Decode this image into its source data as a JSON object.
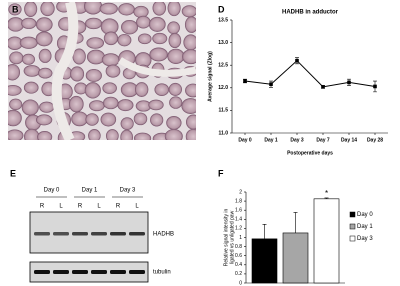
{
  "panel_labels": [
    "B",
    "D",
    "E",
    "F"
  ],
  "chart_data": [
    {
      "type": "line",
      "title": "HADHB in adductor",
      "y_label": "Average signal (Zlog)",
      "x_label": "Postoperative days",
      "categories": [
        "Day 0",
        "Day 1",
        "Day 3",
        "Day 7",
        "Day 14",
        "Day 28"
      ],
      "values": [
        12.15,
        12.08,
        12.6,
        12.02,
        12.12,
        12.03
      ],
      "errors": [
        0.04,
        0.07,
        0.07,
        0.03,
        0.07,
        0.12
      ],
      "color": "#000000",
      "ylim": [
        11.0,
        13.5
      ],
      "yticks": [
        {
          "value": 11,
          "label": "11.0"
        },
        {
          "value": 11.5,
          "label": "11.5"
        },
        {
          "value": 12,
          "label": "12.0"
        },
        {
          "value": 12.5,
          "label": "12.5"
        },
        {
          "value": 13,
          "label": "13.0"
        },
        {
          "value": 13.5,
          "label": "13.5"
        }
      ]
    },
    {
      "type": "bar",
      "y_label": [
        "Relative signal intensity in",
        "ligated vs unligated paw"
      ],
      "categories": [
        "Day 0",
        "Day 1",
        "Day 3"
      ],
      "values": [
        0.97,
        1.1,
        1.85
      ],
      "errors": [
        0.32,
        0.45,
        0.02
      ],
      "colors": [
        "#000000",
        "#a6a6a6",
        "#ffffff"
      ],
      "annotation": "*",
      "ylim": [
        0,
        2
      ],
      "yticks": [
        0,
        0.2,
        0.4,
        0.6,
        0.8,
        1,
        1.2,
        1.4,
        1.6,
        1.8,
        2
      ]
    }
  ],
  "blot": {
    "groups": [
      {
        "label": "Day 0",
        "lanes": [
          "R",
          "L"
        ]
      },
      {
        "label": "Day 1",
        "lanes": [
          "R",
          "L"
        ]
      },
      {
        "label": "Day 3",
        "lanes": [
          "R",
          "L"
        ]
      }
    ],
    "bands": [
      "HADHB",
      "tubulin"
    ]
  }
}
